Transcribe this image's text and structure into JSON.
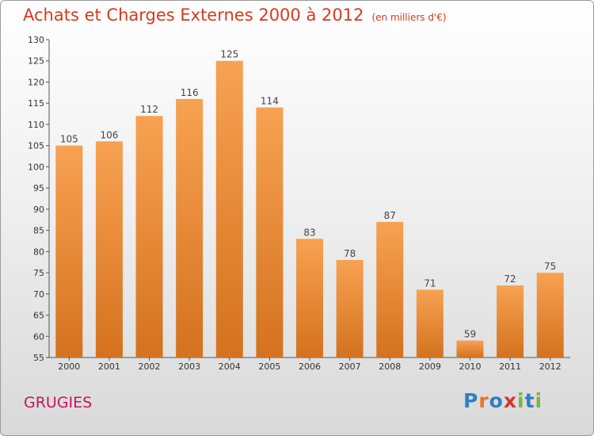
{
  "title": "Achats et Charges Externes 2000 à 2012",
  "subtitle": "(en milliers d'€)",
  "town": "GRUGIES",
  "brand": {
    "letters": [
      {
        "ch": "P",
        "color": "#2f7fc2"
      },
      {
        "ch": "r",
        "color": "#e3772a"
      },
      {
        "ch": "o",
        "color": "#2f7fc2"
      },
      {
        "ch": "x",
        "color": "#d8322e"
      },
      {
        "ch": "i",
        "color": "#7ab63a"
      },
      {
        "ch": "t",
        "color": "#2f7fc2"
      },
      {
        "ch": "i",
        "color": "#7ab63a"
      }
    ]
  },
  "colors": {
    "bar_top": "#f7a252",
    "bar_bottom": "#d4721e",
    "title": "#d63a1e",
    "town": "#c4145e"
  },
  "chart_data": {
    "type": "bar",
    "categories": [
      "2000",
      "2001",
      "2002",
      "2003",
      "2004",
      "2005",
      "2006",
      "2007",
      "2008",
      "2009",
      "2010",
      "2011",
      "2012"
    ],
    "values": [
      105,
      106,
      112,
      116,
      125,
      114,
      83,
      78,
      87,
      71,
      59,
      72,
      75
    ],
    "ylim": [
      55,
      130
    ],
    "yticks": [
      55,
      60,
      65,
      70,
      75,
      80,
      85,
      90,
      95,
      100,
      105,
      110,
      115,
      120,
      125,
      130
    ],
    "grid": false,
    "legend": "none"
  }
}
